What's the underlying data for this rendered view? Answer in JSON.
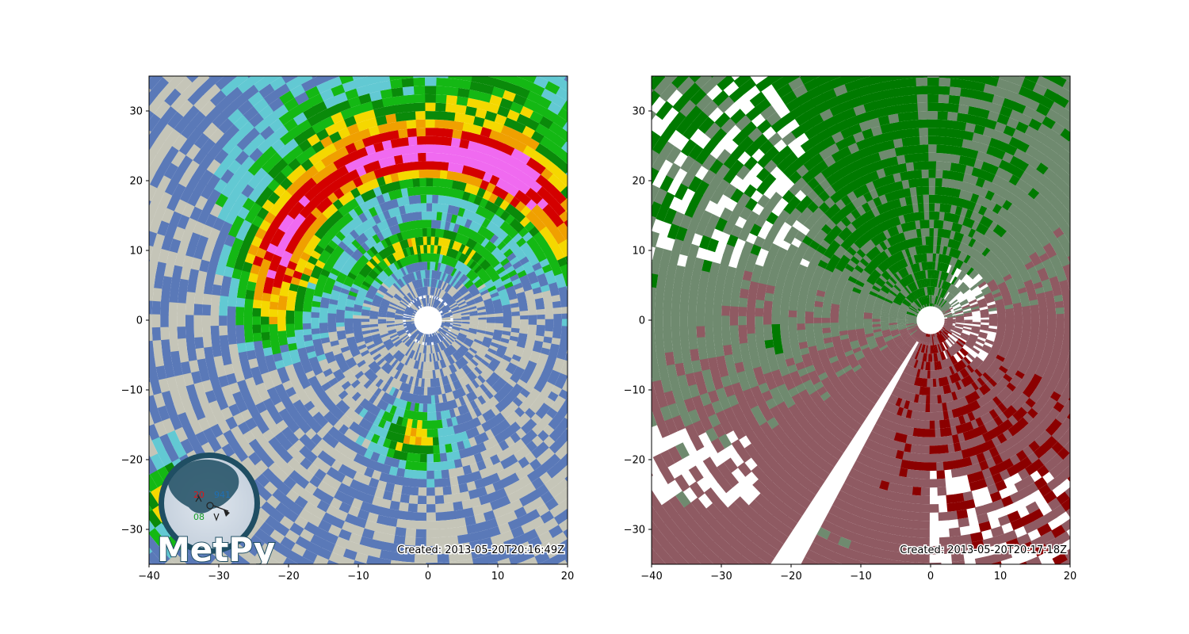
{
  "chart_data": [
    {
      "type": "heatmap",
      "field": "reflectivity",
      "xlim": [
        -40,
        20
      ],
      "ylim": [
        -35,
        35
      ],
      "x_ticks": [
        -40,
        -30,
        -20,
        -10,
        0,
        10,
        20
      ],
      "y_ticks": [
        -30,
        -20,
        -10,
        0,
        10,
        20,
        30
      ],
      "x_tick_labels": [
        "−40",
        "−30",
        "−20",
        "−10",
        "0",
        "10",
        "20"
      ],
      "y_tick_labels": [
        "−30",
        "−20",
        "−10",
        "0",
        "10",
        "20",
        "30"
      ],
      "radar_center": [
        0,
        0
      ],
      "blank_radius": 2,
      "timestamp": "Created: 2013-05-20T20:16:49Z",
      "logo": {
        "wordmark": "MetPy",
        "station_values": {
          "temperature": "20",
          "dewpoint": "08",
          "pressure": "941"
        }
      },
      "colors": {
        "light_gray": "#c5c5b8",
        "blue": "#5a79b8",
        "cyan": "#62c9d3",
        "green": "#14b814",
        "dark_green": "#0a8a0a",
        "yellow": "#f5d800",
        "orange": "#f0a000",
        "red": "#d40000",
        "magenta": "#f06af0"
      }
    },
    {
      "type": "heatmap",
      "field": "velocity",
      "xlim": [
        -40,
        20
      ],
      "ylim": [
        -35,
        35
      ],
      "x_ticks": [
        -40,
        -30,
        -20,
        -10,
        0,
        10,
        20
      ],
      "y_ticks": [
        -30,
        -20,
        -10,
        0,
        10,
        20,
        30
      ],
      "x_tick_labels": [
        "−40",
        "−30",
        "−20",
        "−10",
        "0",
        "10",
        "20"
      ],
      "y_tick_labels": [
        "−30",
        "−20",
        "−10",
        "0",
        "10",
        "20",
        "30"
      ],
      "radar_center": [
        0,
        0
      ],
      "blank_radius": 2,
      "timestamp": "Created: 2013-05-20T20:17:18Z",
      "colors": {
        "outbound_muted": "#8f5a62",
        "outbound_strong": "#8b0000",
        "inbound_muted": "#6f8a6f",
        "inbound_strong": "#007a00",
        "no_data": "#ffffff"
      }
    }
  ]
}
